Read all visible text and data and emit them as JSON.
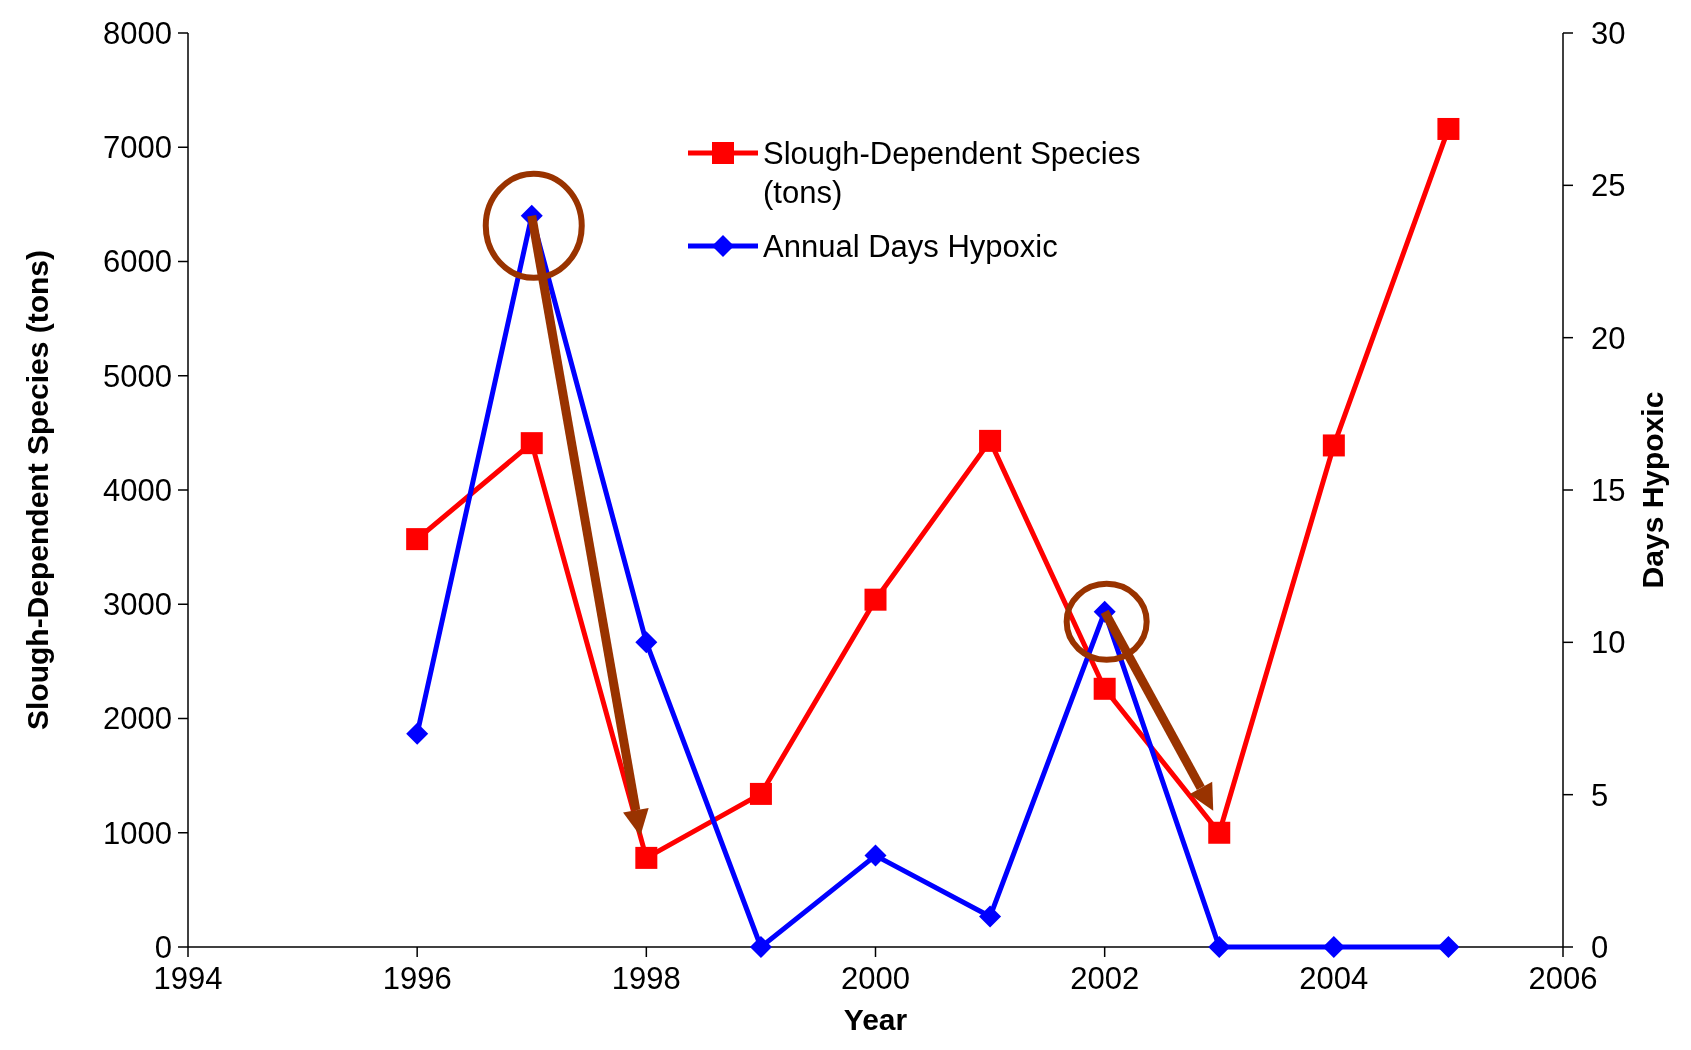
{
  "chart_data": {
    "type": "line",
    "xlabel": "Year",
    "ylabel": "Slough-Dependent Species (tons)",
    "y2label": "Days Hypoxic",
    "x": [
      1996,
      1997,
      1998,
      1999,
      2000,
      2001,
      2002,
      2003,
      2004,
      2005
    ],
    "series": [
      {
        "name": "Slough-Dependent Species (tons)",
        "color": "#ff0000",
        "marker": "square",
        "values": [
          3570,
          4410,
          780,
          1340,
          3040,
          4430,
          2260,
          1000,
          4390,
          7160
        ]
      },
      {
        "name": "Annual Days Hypoxic",
        "color": "#0000ff",
        "marker": "diamond",
        "axis": "y2",
        "values": [
          7,
          24,
          10,
          0,
          3,
          1,
          11,
          0,
          0,
          0
        ]
      }
    ],
    "xlim": [
      1994,
      2006
    ],
    "xticks": [
      1994,
      1996,
      1998,
      2000,
      2002,
      2004,
      2006
    ],
    "ylim": [
      0,
      8000
    ],
    "yticks": [
      0,
      1000,
      2000,
      3000,
      4000,
      5000,
      6000,
      7000,
      8000
    ],
    "y2lim": [
      0,
      30
    ],
    "y2ticks": [
      0,
      5,
      10,
      15,
      20,
      25,
      30
    ],
    "grid": false,
    "legend": "top",
    "line_style": "solid"
  }
}
